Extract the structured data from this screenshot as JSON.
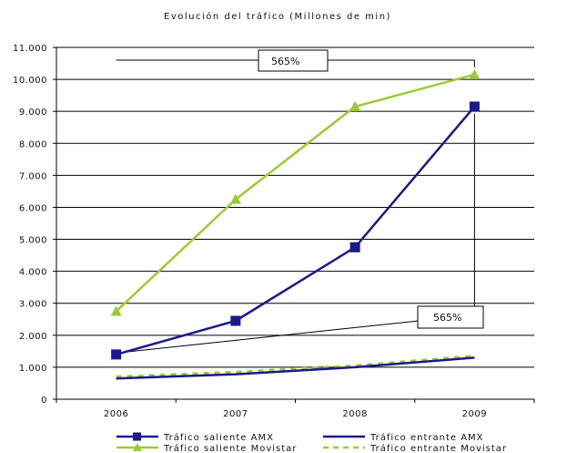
{
  "chart_data": {
    "type": "line",
    "title": "Evolución del tráfico (Millones de min)",
    "xlabel": "",
    "ylabel": "",
    "categories": [
      "2006",
      "2007",
      "2008",
      "2009"
    ],
    "ylim": [
      0,
      11000
    ],
    "yticks": [
      0,
      1000,
      2000,
      3000,
      4000,
      5000,
      6000,
      7000,
      8000,
      9000,
      10000,
      11000
    ],
    "ytick_labels": [
      "0",
      "1.000",
      "2.000",
      "3.000",
      "4.000",
      "5.000",
      "6.000",
      "7.000",
      "8.000",
      "9.000",
      "10.000",
      "11.000"
    ],
    "grid": "horizontal",
    "legend_position": "bottom",
    "series": [
      {
        "name": "Tráfico saliente AMX",
        "values": [
          1400,
          2450,
          4750,
          9150
        ],
        "color": "#1a1a8c",
        "marker": "square",
        "style": "solid"
      },
      {
        "name": "Tráfico entrante AMX",
        "values": [
          650,
          780,
          1000,
          1300
        ],
        "color": "#1a1a8c",
        "marker": "none",
        "style": "solid"
      },
      {
        "name": "Tráfico saliente Movistar",
        "values": [
          2750,
          6250,
          9150,
          10150
        ],
        "color": "#9acd32",
        "marker": "triangle",
        "style": "solid"
      },
      {
        "name": "Tráfico entrante Movistar",
        "values": [
          700,
          850,
          1050,
          1350
        ],
        "color": "#9acd32",
        "marker": "none",
        "style": "dashed"
      }
    ],
    "annotations": [
      {
        "text": "565%",
        "series": "Tráfico saliente Movistar"
      },
      {
        "text": "565%",
        "series": "Tráfico saliente AMX"
      }
    ]
  }
}
